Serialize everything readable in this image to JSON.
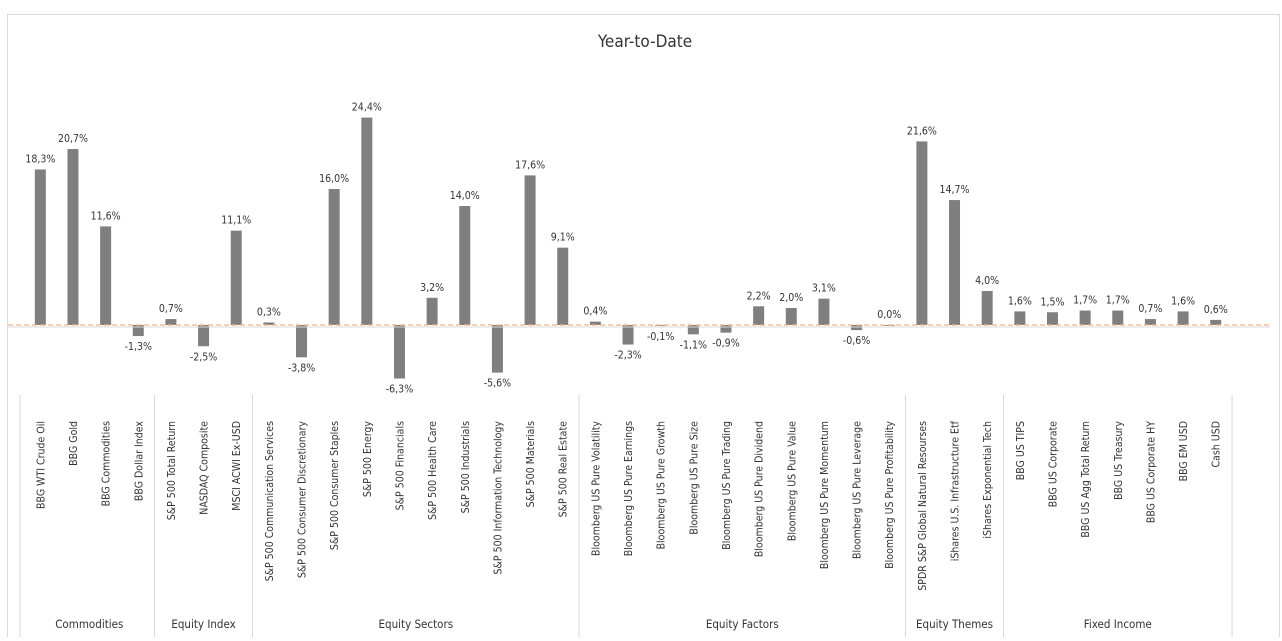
{
  "chart_data": {
    "type": "bar",
    "title": "Year-to-Date",
    "xlabel": "",
    "ylabel": "",
    "ylim": [
      -8,
      27
    ],
    "grid": false,
    "legend": "none",
    "bar_color": "#7f7f7f",
    "reference_line_color": "#f4b183",
    "categories": [
      "BBG WTI Crude Oil",
      "BBG Gold",
      "BBG Commodities",
      "BBG Dollar Index",
      "S&P 500 Total Return",
      "NASDAQ Composite",
      "MSCI ACWI Ex-USD",
      "S&P 500 Communication Services",
      "S&P 500 Consumer Discretionary",
      "S&P 500 Consumer Staples",
      "S&P 500 Energy",
      "S&P 500 Financials",
      "S&P 500 Health Care",
      "S&P 500 Industrials",
      "S&P 500 Information Technology",
      "S&P 500 Materials",
      "S&P 500 Real Estate",
      "Bloomberg US Pure Volatility",
      "Bloomberg US Pure Earnings",
      "Bloomberg US Pure Growth",
      "Bloomberg US Pure Size",
      "Bloomberg US Pure Trading",
      "Bloomberg US Pure Dividend",
      "Bloomberg US Pure Value",
      "Bloomberg US Pure Momentum",
      "Bloomberg US Pure Leverage",
      "Bloomberg US Pure Profitability",
      "SPDR S&P Global Natural Resourses",
      "iShares U.S. Infrastructure Etf",
      "iShares Exponential Tech",
      "BBG US TIPS",
      "BBG US Corporate",
      "BBG US Agg Total Return",
      "BBG US Treasury",
      "BBG US Corporate HY",
      "BBG EM USD",
      "Cash USD"
    ],
    "values": [
      18.3,
      20.7,
      11.6,
      -1.3,
      0.7,
      -2.5,
      11.1,
      0.3,
      -3.8,
      16.0,
      24.4,
      -6.3,
      3.2,
      14.0,
      -5.6,
      17.6,
      9.1,
      0.4,
      -2.3,
      -0.1,
      -1.1,
      -0.9,
      2.2,
      2.0,
      3.1,
      -0.6,
      0.0,
      21.6,
      14.7,
      4.0,
      1.6,
      1.5,
      1.7,
      1.7,
      0.7,
      1.6,
      0.6
    ],
    "labels": [
      "18,3%",
      "20,7%",
      "11,6%",
      "-1,3%",
      "0,7%",
      "-2,5%",
      "11,1%",
      "0,3%",
      "-3,8%",
      "16,0%",
      "24,4%",
      "-6,3%",
      "3,2%",
      "14,0%",
      "-5,6%",
      "17,6%",
      "9,1%",
      "0,4%",
      "-2,3%",
      "-0,1%",
      "-1,1%",
      "-0,9%",
      "2,2%",
      "2,0%",
      "3,1%",
      "-0,6%",
      "0,0%",
      "21,6%",
      "14,7%",
      "4,0%",
      "1,6%",
      "1,5%",
      "1,7%",
      "1,7%",
      "0,7%",
      "1,6%",
      "0,6%"
    ],
    "groups": [
      {
        "name": "Commodities",
        "count": 4
      },
      {
        "name": "Equity Index",
        "count": 3
      },
      {
        "name": "Equity Sectors",
        "count": 10
      },
      {
        "name": "Equity Factors",
        "count": 10
      },
      {
        "name": "Equity Themes",
        "count": 3
      },
      {
        "name": "Fixed Income",
        "count": 7
      }
    ]
  }
}
